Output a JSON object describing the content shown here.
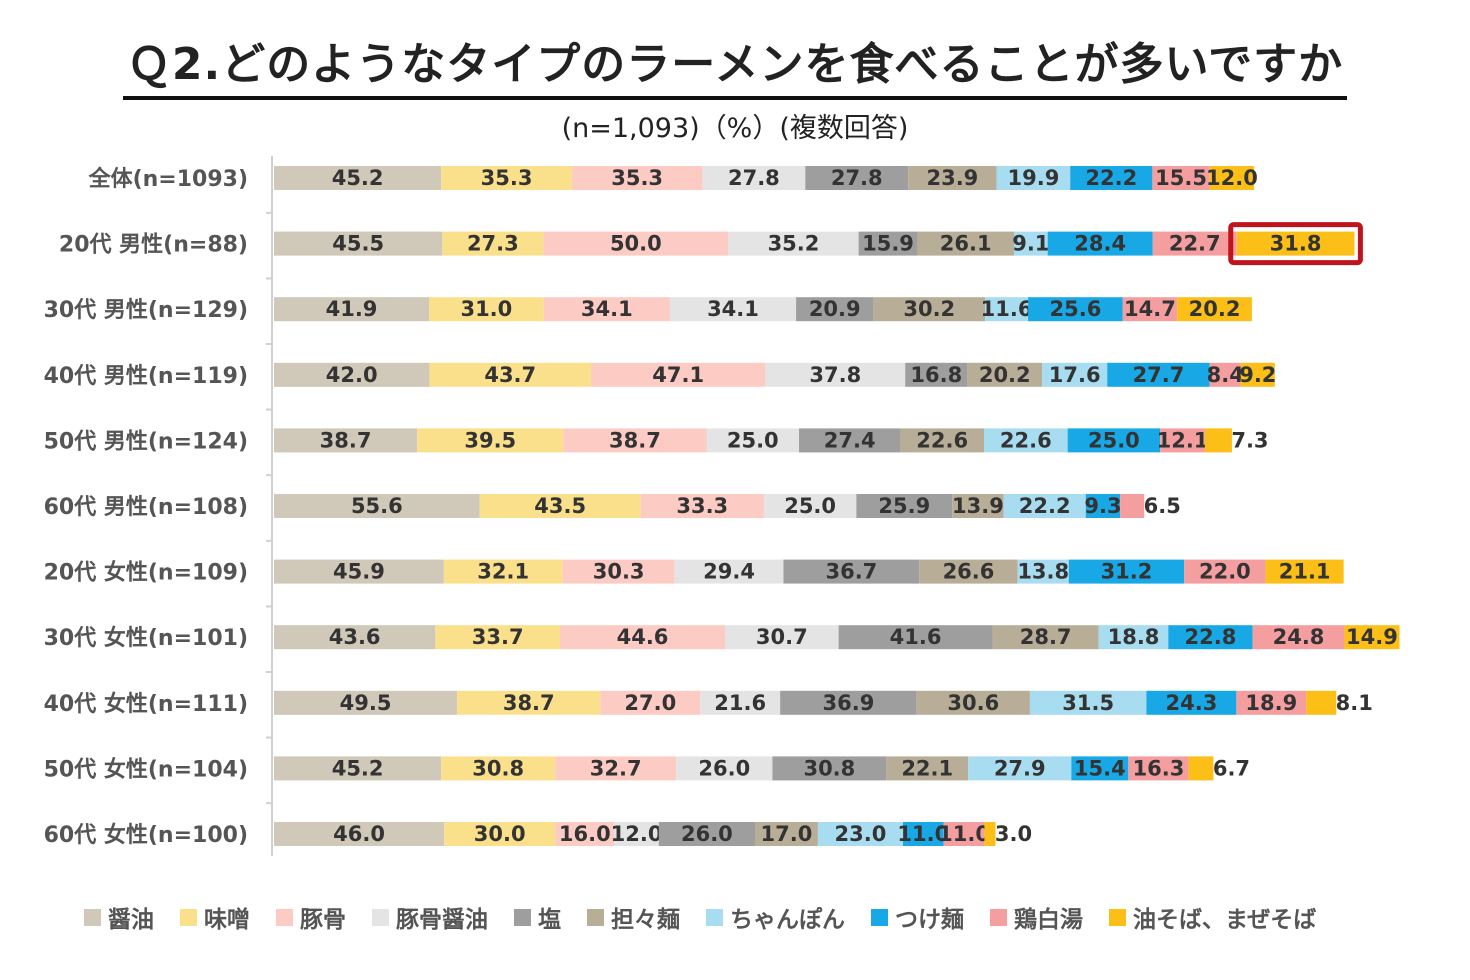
{
  "title": "Ｑ2.どのようなタイプのラーメンを食べることが多いですか",
  "subtitle": "(n=1,093)（%）(複数回答)",
  "chart_data": {
    "type": "bar",
    "stacked": true,
    "orientation": "horizontal",
    "categories": [
      "全体(n=1093)",
      "20代 男性(n=88)",
      "30代 男性(n=129)",
      "40代 男性(n=119)",
      "50代 男性(n=124)",
      "60代 男性(n=108)",
      "20代 女性(n=109)",
      "30代 女性(n=101)",
      "40代 女性(n=111)",
      "50代 女性(n=104)",
      "60代 女性(n=100)"
    ],
    "series": [
      {
        "name": "醤油",
        "color": "#d0c8b8",
        "text_color": "#333333",
        "values": [
          45.2,
          45.5,
          41.9,
          42.0,
          38.7,
          55.6,
          45.9,
          43.6,
          49.5,
          45.2,
          46.0
        ]
      },
      {
        "name": "味噌",
        "color": "#fbe08c",
        "text_color": "#333333",
        "values": [
          35.3,
          27.3,
          31.0,
          43.7,
          39.5,
          43.5,
          32.1,
          33.7,
          38.7,
          30.8,
          30.0
        ]
      },
      {
        "name": "豚骨",
        "color": "#fbcbc4",
        "text_color": "#333333",
        "values": [
          35.3,
          50.0,
          34.1,
          47.1,
          38.7,
          33.3,
          30.3,
          44.6,
          27.0,
          32.7,
          16.0
        ]
      },
      {
        "name": "豚骨醤油",
        "color": "#e4e4e4",
        "text_color": "#333333",
        "values": [
          27.8,
          35.2,
          34.1,
          37.8,
          25.0,
          25.0,
          29.4,
          30.7,
          21.6,
          26.0,
          12.0
        ]
      },
      {
        "name": "塩",
        "color": "#9e9e9e",
        "text_color": "#333333",
        "values": [
          27.8,
          15.9,
          20.9,
          16.8,
          27.4,
          25.9,
          36.7,
          41.6,
          36.9,
          30.8,
          26.0
        ]
      },
      {
        "name": "担々麺",
        "color": "#b8ae98",
        "text_color": "#333333",
        "values": [
          23.9,
          26.1,
          30.2,
          20.2,
          22.6,
          13.9,
          26.6,
          28.7,
          30.6,
          22.1,
          17.0
        ]
      },
      {
        "name": "ちゃんぽん",
        "color": "#a8dcf0",
        "text_color": "#333333",
        "values": [
          19.9,
          9.1,
          11.6,
          17.6,
          22.6,
          22.2,
          13.8,
          18.8,
          31.5,
          27.9,
          23.0
        ]
      },
      {
        "name": "つけ麺",
        "color": "#18a8e6",
        "text_color": "#333333",
        "values": [
          22.2,
          28.4,
          25.6,
          27.7,
          25.0,
          9.3,
          31.2,
          22.8,
          24.3,
          15.4,
          11.0
        ]
      },
      {
        "name": "鶏白湯",
        "color": "#f59ea0",
        "text_color": "#333333",
        "values": [
          15.5,
          22.7,
          14.7,
          8.4,
          12.1,
          6.5,
          22.0,
          24.8,
          18.9,
          16.3,
          11.0
        ]
      },
      {
        "name": "油そば、まぜそば",
        "color": "#fbbf18",
        "text_color": "#333333",
        "values": [
          12.0,
          31.8,
          20.2,
          9.2,
          7.3,
          null,
          21.1,
          14.9,
          8.1,
          6.7,
          3.0
        ]
      }
    ],
    "highlight": {
      "category_index": 1,
      "series_index": 9,
      "color": "#c0141c"
    },
    "value_format": "one-decimal",
    "legend_position": "bottom",
    "grid": false
  }
}
